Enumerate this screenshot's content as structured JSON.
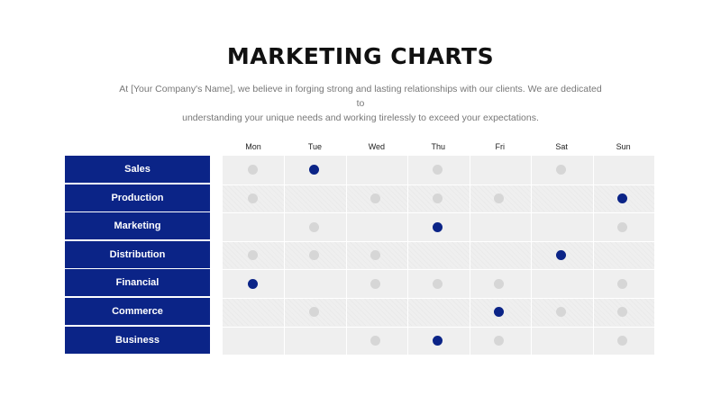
{
  "header": {
    "title": "MARKETING CHARTS",
    "subtitle_line1": "At [Your Company's Name], we believe in forging strong and lasting relationships with our clients. We are dedicated to",
    "subtitle_line2": "understanding your unique needs and working tirelessly to exceed your expectations."
  },
  "days": [
    "Mon",
    "Tue",
    "Wed",
    "Thu",
    "Fri",
    "Sat",
    "Sun"
  ],
  "rows": [
    {
      "label": "Sales",
      "dots": [
        1,
        2,
        0,
        1,
        0,
        1,
        0
      ]
    },
    {
      "label": "Production",
      "dots": [
        1,
        0,
        1,
        1,
        1,
        0,
        2
      ]
    },
    {
      "label": "Marketing",
      "dots": [
        0,
        1,
        0,
        2,
        0,
        0,
        1
      ]
    },
    {
      "label": "Distribution",
      "dots": [
        1,
        1,
        1,
        0,
        0,
        2,
        0
      ]
    },
    {
      "label": "Financial",
      "dots": [
        2,
        0,
        1,
        1,
        1,
        0,
        1
      ]
    },
    {
      "label": "Commerce",
      "dots": [
        0,
        1,
        0,
        0,
        2,
        1,
        1
      ]
    },
    {
      "label": "Business",
      "dots": [
        0,
        0,
        1,
        2,
        1,
        0,
        1
      ]
    }
  ],
  "colors": {
    "active": "#0b2487",
    "inactive": "#d6d6d6",
    "label_bg": "#0b2487"
  }
}
